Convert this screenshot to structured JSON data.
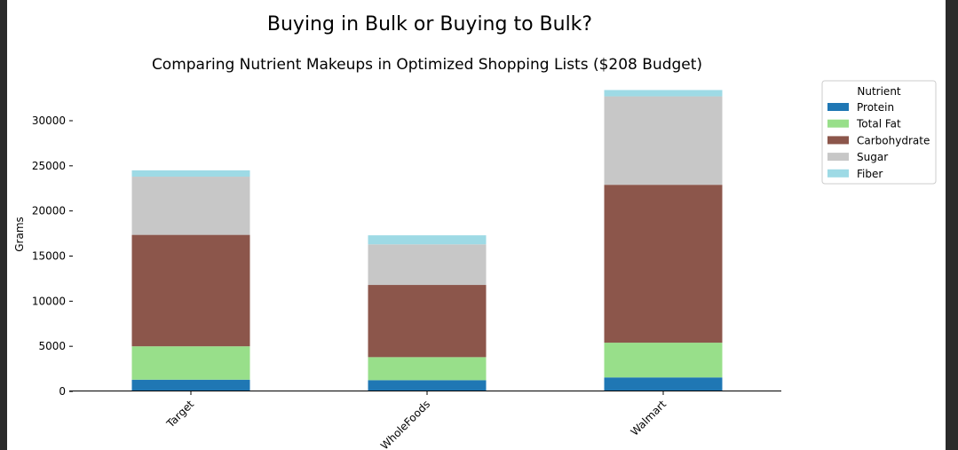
{
  "chart_data": {
    "type": "bar",
    "stacked": true,
    "title": "Buying in Bulk or Buying to Bulk?",
    "subtitle": "Comparing Nutrient Makeups in Optimized Shopping Lists ($208 Budget)",
    "xlabel": "",
    "ylabel": "Grams",
    "ylim": [
      0,
      33500
    ],
    "yticks": [
      0,
      5000,
      10000,
      15000,
      20000,
      25000,
      30000
    ],
    "categories": [
      "Target",
      "WholeFoods",
      "Walmart"
    ],
    "legend_title": "Nutrient",
    "legend_position": "top-right outside",
    "series": [
      {
        "name": "Protein",
        "color": "#1f77b4",
        "values": [
          1300,
          1250,
          1550
        ]
      },
      {
        "name": "Total Fat",
        "color": "#98df8a",
        "values": [
          3700,
          2550,
          3850
        ]
      },
      {
        "name": "Carbohydrate",
        "color": "#8c564b",
        "values": [
          12350,
          8000,
          17500
        ]
      },
      {
        "name": "Sugar",
        "color": "#c7c7c7",
        "values": [
          6450,
          4500,
          9800
        ]
      },
      {
        "name": "Fiber",
        "color": "#9edae5",
        "values": [
          700,
          1000,
          700
        ]
      }
    ]
  }
}
